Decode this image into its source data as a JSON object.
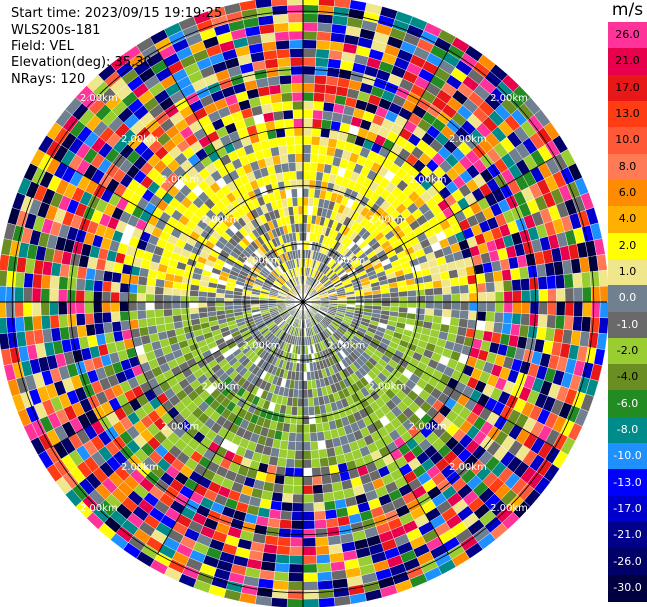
{
  "header": {
    "start_time": "Start time: 2023/09/15 19:19:25",
    "instrument": "WLS200s-181",
    "field": "Field: VEL",
    "elevation": "Elevation(deg): 35.30",
    "nrays": "NRays: 120"
  },
  "colorbar": {
    "unit": "m/s",
    "bins": [
      {
        "label": "26.0",
        "color": "#ff3399"
      },
      {
        "label": "21.0",
        "color": "#e8004c"
      },
      {
        "label": "17.0",
        "color": "#e81818"
      },
      {
        "label": "13.0",
        "color": "#ff3c14"
      },
      {
        "label": "10.0",
        "color": "#ff5a37"
      },
      {
        "label": "8.0",
        "color": "#ff7a55"
      },
      {
        "label": "6.0",
        "color": "#ff8c00"
      },
      {
        "label": "4.0",
        "color": "#ffb000"
      },
      {
        "label": "2.0",
        "color": "#ffff00"
      },
      {
        "label": "1.0",
        "color": "#f0e68c"
      },
      {
        "label": "0.0",
        "color": "#708090"
      },
      {
        "label": "-1.0",
        "color": "#696969"
      },
      {
        "label": "-2.0",
        "color": "#9acd32"
      },
      {
        "label": "-4.0",
        "color": "#6b8e23"
      },
      {
        "label": "-6.0",
        "color": "#228b22"
      },
      {
        "label": "-8.0",
        "color": "#008b8b"
      },
      {
        "label": "-10.0",
        "color": "#1e90ff"
      },
      {
        "label": "-13.0",
        "color": "#0000ff"
      },
      {
        "label": "-17.0",
        "color": "#0000cd"
      },
      {
        "label": "-21.0",
        "color": "#00008b"
      },
      {
        "label": "-26.0",
        "color": "#000066"
      },
      {
        "label": "-30.0",
        "color": "#000040"
      }
    ]
  },
  "range_ring_label": "2.00km",
  "chart_data": {
    "type": "heatmap",
    "projection": "polar PPI",
    "field": "VEL",
    "elevation_deg": 35.3,
    "n_rays": 120,
    "range_rings_km": [
      2.0,
      4.0,
      6.0,
      8.0,
      10.0
    ],
    "radial_spokes_deg": [
      0,
      30,
      60,
      90,
      120,
      150,
      180,
      210,
      240,
      270,
      300,
      330
    ],
    "value_regions": [
      {
        "description": "north sector inner",
        "azimuth_deg": [
          270,
          90
        ],
        "range_km": [
          0.3,
          6.5
        ],
        "dominant_values_ms": [
          1.0,
          2.0
        ]
      },
      {
        "description": "south sector inner",
        "azimuth_deg": [
          90,
          270
        ],
        "range_km": [
          0.3,
          6.5
        ],
        "dominant_values_ms": [
          -2.0,
          -4.0
        ]
      },
      {
        "description": "near-zero velocity band",
        "azimuth_deg": [
          0,
          360
        ],
        "range_km": [
          0.3,
          3.5
        ],
        "dominant_values_ms": [
          0.0,
          -1.0
        ]
      },
      {
        "description": "noise beyond ~7 km",
        "azimuth_deg": [
          0,
          360
        ],
        "range_km": [
          6.5,
          10.5
        ],
        "dominant_values_ms": "random"
      }
    ]
  }
}
